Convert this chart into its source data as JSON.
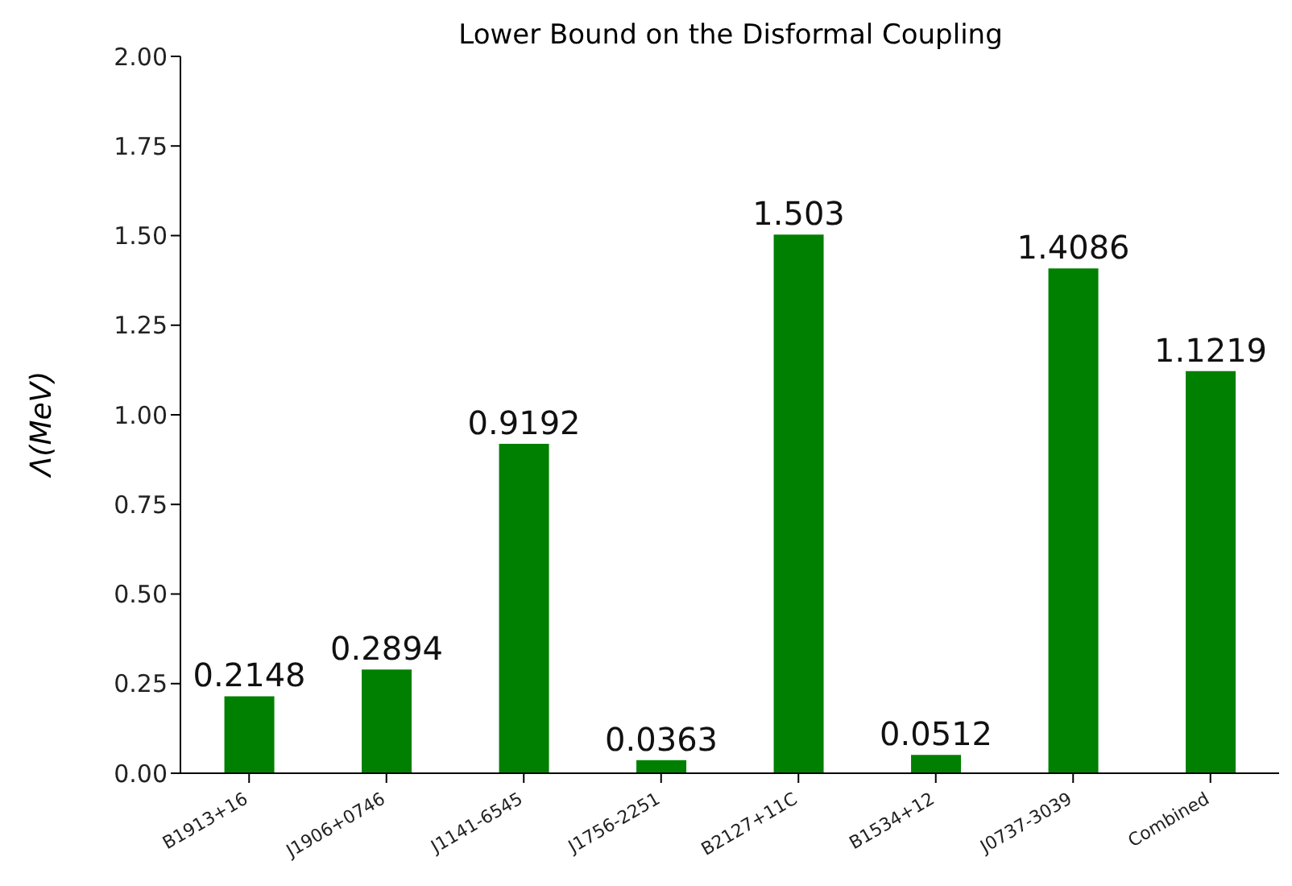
{
  "chart_data": {
    "type": "bar",
    "title": "Lower Bound on the Disformal Coupling",
    "ylabel": "Λ(MeV)",
    "categories": [
      "B1913+16",
      "J1906+0746",
      "J1141-6545",
      "J1756-2251",
      "B2127+11C",
      "B1534+12",
      "J0737-3039",
      "Combined"
    ],
    "values": [
      0.2148,
      0.2894,
      0.9192,
      0.0363,
      1.503,
      0.0512,
      1.4086,
      1.1219
    ],
    "color": "#008000",
    "ylim": [
      0,
      2
    ],
    "yticks": [
      {
        "value": 0,
        "label": "0.00"
      },
      {
        "value": 0.25,
        "label": "0.25"
      },
      {
        "value": 0.5,
        "label": "0.50"
      },
      {
        "value": 0.75,
        "label": "0.75"
      },
      {
        "value": 1,
        "label": "1.00"
      },
      {
        "value": 1.25,
        "label": "1.25"
      },
      {
        "value": 1.5,
        "label": "1.50"
      },
      {
        "value": 1.75,
        "label": "1.75"
      },
      {
        "value": 2,
        "label": "2.00"
      }
    ],
    "data_labels": true,
    "grid": false,
    "legend": false
  }
}
